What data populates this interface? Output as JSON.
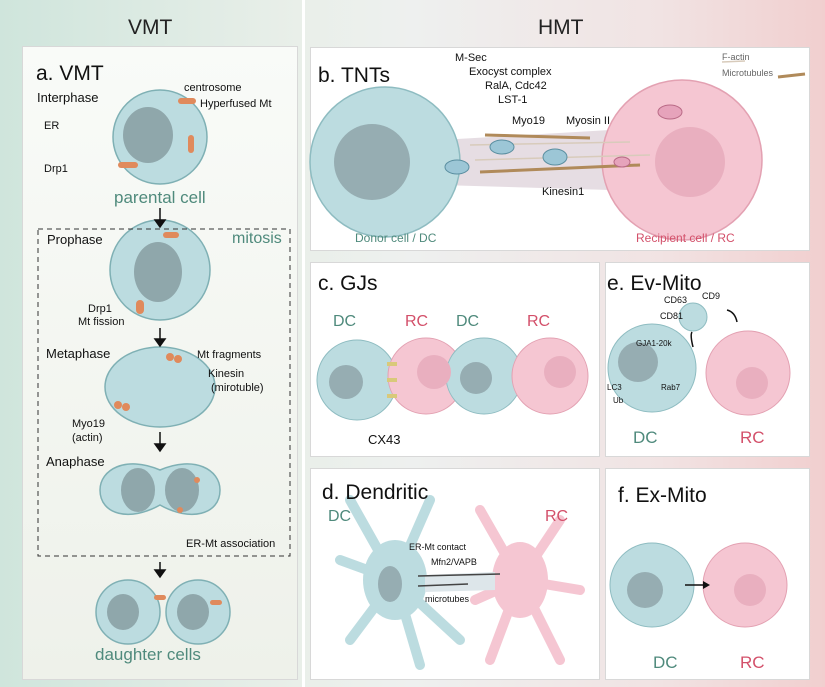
{
  "headers": {
    "vmt": "VMT",
    "hmt": "HMT"
  },
  "panel_a": {
    "title": "a. VMT",
    "interphase": "Interphase",
    "centrosome": "centrosome",
    "hyperfused_mt": "Hyperfused Mt",
    "er": "ER",
    "drp1": "Drp1",
    "parental_cell": "parental cell",
    "prophase": "Prophase",
    "mitosis": "mitosis",
    "drp1_fission_1": "Drp1",
    "drp1_fission_2": "Mt fission",
    "metaphase": "Metaphase",
    "mt_fragments": "Mt fragments",
    "kinesin_1": "Kinesin",
    "kinesin_2": "(mirotuble)",
    "myo19_1": "Myo19",
    "myo19_2": "(actin)",
    "anaphase": "Anaphase",
    "er_mt_association": "ER-Mt association",
    "daughter_cells": "daughter cells"
  },
  "panel_b": {
    "title": "b. TNTs",
    "m_sec": "M-Sec",
    "exocyst": "Exocyst complex",
    "rala": "RalA, Cdc42",
    "lst1": "LST-1",
    "myo19": "Myo19",
    "myosin2": "Myosin II",
    "kinesin1": "Kinesin1",
    "legend_factin": "F-actin",
    "legend_microtubules": "Microtubules",
    "donor": "Donor cell / DC",
    "recipient": "Recipient cell / RC"
  },
  "panel_c": {
    "title": "c. GJs",
    "dc1": "DC",
    "rc1": "RC",
    "dc2": "DC",
    "rc2": "RC",
    "cx43": "CX43"
  },
  "panel_d": {
    "title": "d. Dendritic",
    "dc": "DC",
    "rc": "RC",
    "er_mt_contact": "ER-Mt contact",
    "mfn2": "Mfn2/VAPB",
    "microtubes": "microtubes"
  },
  "panel_e": {
    "title": "e. Ev-Mito",
    "cd63": "CD63",
    "cd9": "CD9",
    "cd81": "CD81",
    "gja1": "GJA1-20k",
    "lc3": "LC3",
    "ub": "Ub",
    "rab7": "Rab7",
    "dc": "DC",
    "rc": "RC"
  },
  "panel_f": {
    "title": "f. Ex-Mito",
    "dc": "DC",
    "rc": "RC"
  },
  "colors": {
    "donor_cell": "#bcdce0",
    "recipient_cell": "#f5c6d2",
    "mitochondria": "#e08a5c",
    "teal_text": "#4f8a7c",
    "pink_text": "#d3506a"
  }
}
